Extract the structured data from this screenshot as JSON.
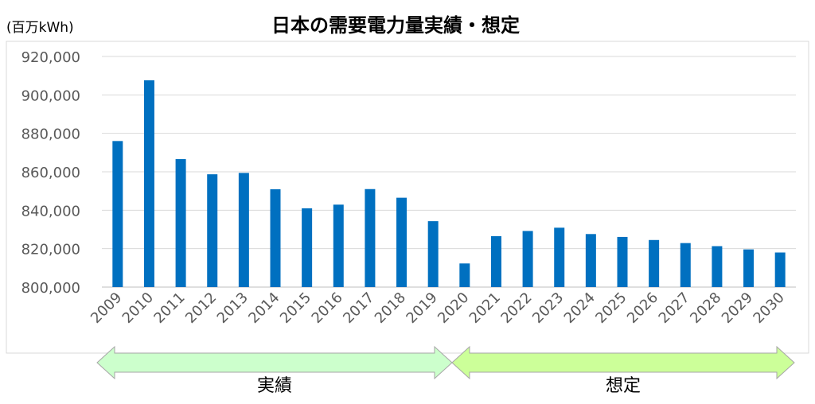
{
  "chart_data": {
    "type": "bar",
    "title": "日本の需要電力量実績・想定",
    "ylabel": "(百万kWh)",
    "xlabel": "",
    "ylim": [
      800000,
      920000
    ],
    "yticks": [
      "800,000",
      "820,000",
      "840,000",
      "860,000",
      "880,000",
      "900,000",
      "920,000"
    ],
    "categories": [
      "2009",
      "2010",
      "2011",
      "2012",
      "2013",
      "2014",
      "2015",
      "2016",
      "2017",
      "2018",
      "2019",
      "2020",
      "2021",
      "2022",
      "2023",
      "2024",
      "2025",
      "2026",
      "2027",
      "2028",
      "2029",
      "2030"
    ],
    "values": [
      876000,
      907600,
      866600,
      858700,
      859400,
      850900,
      841000,
      842900,
      851000,
      846500,
      834300,
      812300,
      826500,
      829200,
      830900,
      827600,
      826100,
      824500,
      822900,
      821300,
      819600,
      818000
    ],
    "bar_color": "#0070C0",
    "grid": true,
    "legend": "none",
    "periods": [
      {
        "label": "実績",
        "color": "#CCFFCC",
        "years": [
          "2009",
          "2019"
        ]
      },
      {
        "label": "想定",
        "color": "#CCFF99",
        "years": [
          "2020",
          "2030"
        ]
      }
    ]
  }
}
